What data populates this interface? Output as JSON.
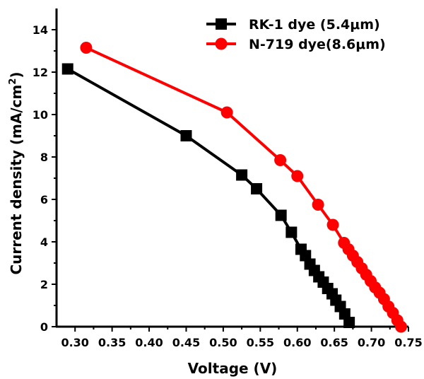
{
  "chart_data": {
    "type": "line",
    "title": "",
    "xlabel": "Voltage (V)",
    "ylabel": "Current density (mA/cm²)",
    "xlim": [
      0.275,
      0.75
    ],
    "ylim": [
      0,
      15
    ],
    "x_ticks": [
      "0.30",
      "0.35",
      "0.40",
      "0.45",
      "0.50",
      "0.55",
      "0.60",
      "0.65",
      "0.70",
      "0.75"
    ],
    "x_tick_values": [
      0.3,
      0.35,
      0.4,
      0.45,
      0.5,
      0.55,
      0.6,
      0.65,
      0.7,
      0.75
    ],
    "y_ticks": [
      "0",
      "2",
      "4",
      "6",
      "8",
      "10",
      "12",
      "14"
    ],
    "y_tick_values": [
      0,
      2,
      4,
      6,
      8,
      10,
      12,
      14
    ],
    "grid": false,
    "legend_position": "top-right",
    "series": [
      {
        "name": "RK-1 dye (5.4μm)",
        "color": "#000000",
        "marker": "square",
        "x": [
          0.29,
          0.45,
          0.525,
          0.545,
          0.578,
          0.592,
          0.605,
          0.611,
          0.617,
          0.623,
          0.629,
          0.635,
          0.641,
          0.647,
          0.652,
          0.658,
          0.664,
          0.67
        ],
        "y": [
          12.15,
          9.0,
          7.15,
          6.5,
          5.25,
          4.45,
          3.65,
          3.35,
          2.95,
          2.65,
          2.35,
          2.1,
          1.8,
          1.55,
          1.25,
          0.95,
          0.6,
          0.2
        ]
      },
      {
        "name": "N-719 dye(8.6μm)",
        "color": "#ff0000",
        "marker": "circle",
        "x": [
          0.315,
          0.505,
          0.577,
          0.6,
          0.628,
          0.648,
          0.663,
          0.669,
          0.675,
          0.681,
          0.687,
          0.693,
          0.699,
          0.705,
          0.711,
          0.717,
          0.723,
          0.729,
          0.735,
          0.74
        ],
        "y": [
          13.15,
          10.1,
          7.85,
          7.1,
          5.75,
          4.8,
          3.95,
          3.65,
          3.35,
          3.05,
          2.75,
          2.45,
          2.15,
          1.85,
          1.6,
          1.3,
          0.95,
          0.65,
          0.3,
          0.0
        ]
      }
    ]
  }
}
